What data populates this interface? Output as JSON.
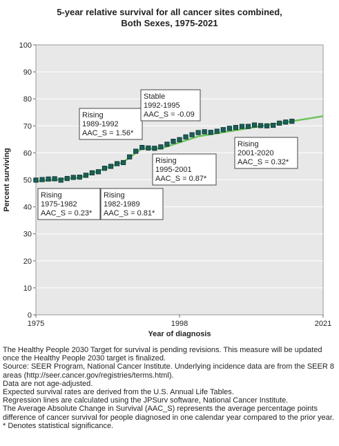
{
  "chart_data": {
    "type": "line",
    "title_line1": "5-year relative survival for all cancer sites combined,",
    "title_line2": "Both Sexes,  1975-2021",
    "xlabel": "Year of diagnosis",
    "ylabel": "Percent surviving",
    "xlim": [
      1975,
      2021
    ],
    "ylim": [
      0,
      100
    ],
    "x_ticks": [
      "1975",
      "1998",
      "2021"
    ],
    "y_ticks": [
      "0",
      "10",
      "20",
      "30",
      "40",
      "50",
      "60",
      "70",
      "80",
      "90",
      "100"
    ],
    "grid": "horizontal",
    "colors": {
      "markers": "#1a5f5a",
      "marker_edge": "#0d3330",
      "fit": "#6cc45c",
      "plot_bg": "#e8e8e8"
    },
    "observed": {
      "x": [
        1975,
        1976,
        1977,
        1978,
        1979,
        1980,
        1981,
        1982,
        1983,
        1984,
        1985,
        1986,
        1987,
        1988,
        1989,
        1990,
        1991,
        1992,
        1993,
        1994,
        1995,
        1996,
        1997,
        1998,
        1999,
        2000,
        2001,
        2002,
        2003,
        2004,
        2005,
        2006,
        2007,
        2008,
        2009,
        2010,
        2011,
        2012,
        2013,
        2014,
        2015,
        2016
      ],
      "y": [
        49.9,
        50.1,
        50.3,
        50.4,
        49.9,
        50.5,
        50.9,
        51.0,
        51.7,
        52.6,
        53.0,
        54.3,
        55.0,
        56.0,
        56.4,
        58.5,
        60.6,
        62.0,
        61.8,
        61.7,
        62.2,
        63.2,
        64.3,
        64.9,
        65.9,
        66.7,
        67.5,
        67.8,
        67.6,
        68.0,
        68.6,
        69.1,
        69.4,
        69.8,
        69.8,
        70.3,
        70.1,
        70.0,
        70.2,
        71.0,
        71.4,
        71.7
      ]
    },
    "fit": {
      "x": [
        1975,
        1982,
        1989,
        1992,
        1995,
        2001,
        2021
      ],
      "y": [
        49.5,
        50.8,
        56.6,
        61.6,
        61.6,
        66.1,
        73.6
      ]
    },
    "annotations": [
      {
        "lines": [
          "Rising",
          "1975-1982",
          "AAC_S =  0.23*"
        ]
      },
      {
        "lines": [
          "Rising",
          "1982-1989",
          "AAC_S =  0.81*"
        ]
      },
      {
        "lines": [
          "Rising",
          "1989-1992",
          "AAC_S =  1.56*"
        ]
      },
      {
        "lines": [
          "Stable",
          "1992-1995",
          "AAC_S = -0.09"
        ]
      },
      {
        "lines": [
          "Rising",
          "1995-2001",
          "AAC_S =  0.87*"
        ]
      },
      {
        "lines": [
          "Rising",
          "2001-2020",
          "AAC_S =  0.32*"
        ]
      }
    ]
  },
  "notes": [
    "The Healthy People 2030 Target for survival is pending revisions. This measure will be updated once the Healthy People 2030 target is finalized.",
    "Source: SEER Program, National Cancer Institute. Underlying incidence data are from the SEER 8 areas (http://seer.cancer.gov/registries/terms.html).",
    "Data are not age-adjusted.",
    "Expected survival rates are derived from the U.S. Annual Life Tables.",
    "Regression lines are calculated using the JPSurv software, National Cancer Institute.",
    "The Average Absolute Change in Survival (AAC_S) represents the average percentage points difference of cancer survival for people diagnosed in one calendar year compared to the prior year.",
    "* Denotes statistical significance."
  ]
}
